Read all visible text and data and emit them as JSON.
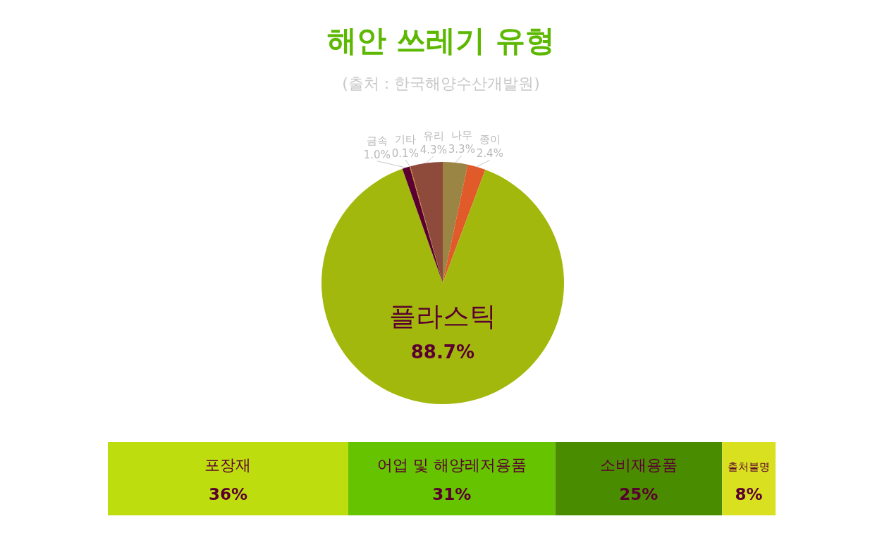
{
  "chart_data": [
    {
      "type": "pie",
      "title": "해안 쓰레기 유형",
      "subtitle": "(출처 : 한국해양수산개발원)",
      "categories": [
        "나무",
        "종이",
        "플라스틱",
        "금속",
        "기타",
        "유리"
      ],
      "values": [
        3.3,
        2.4,
        88.7,
        1.0,
        0.1,
        4.3
      ],
      "value_labels": [
        "3.3%",
        "2.4%",
        "88.7%",
        "1.0%",
        "0.1%",
        "4.3%"
      ],
      "colors": [
        "#9a8545",
        "#e05a2a",
        "#a3b80c",
        "#5a0030",
        "#d07a10",
        "#8e4a3a"
      ]
    },
    {
      "type": "bar",
      "stacked": true,
      "orientation": "horizontal",
      "categories": [
        null
      ],
      "series": [
        {
          "name": "포장재",
          "color": "#bedd0e",
          "values": [
            36
          ],
          "value_labels": [
            "36%"
          ]
        },
        {
          "name": "어업 및 해양레저용품",
          "color": "#66c300",
          "values": [
            31
          ],
          "value_labels": [
            "31%"
          ]
        },
        {
          "name": "소비재용품",
          "color": "#4a8c00",
          "values": [
            25
          ],
          "value_labels": [
            "25%"
          ]
        },
        {
          "name": "출처불명",
          "color": "#d8e020",
          "values": [
            8
          ],
          "value_labels": [
            "8%"
          ]
        }
      ]
    }
  ]
}
